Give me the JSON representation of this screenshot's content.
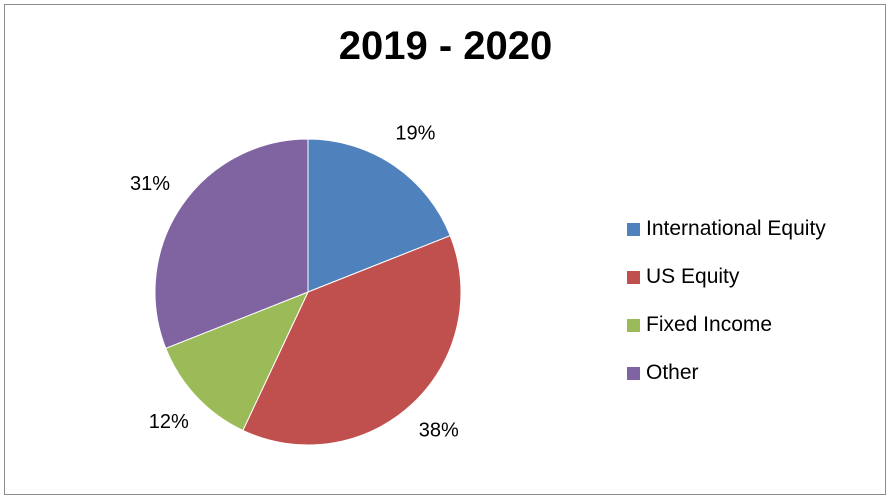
{
  "chart_data": {
    "type": "pie",
    "title": "2019 - 2020",
    "categories": [
      "International Equity",
      "US Equity",
      "Fixed Income",
      "Other"
    ],
    "values": [
      19,
      38,
      12,
      31
    ],
    "labels": [
      "19%",
      "38%",
      "12%",
      "31%"
    ],
    "colors": [
      "#4f81bd",
      "#c0504d",
      "#9bbb59",
      "#8064a2"
    ],
    "legend_position": "right",
    "start_angle": "top",
    "direction": "clockwise"
  }
}
